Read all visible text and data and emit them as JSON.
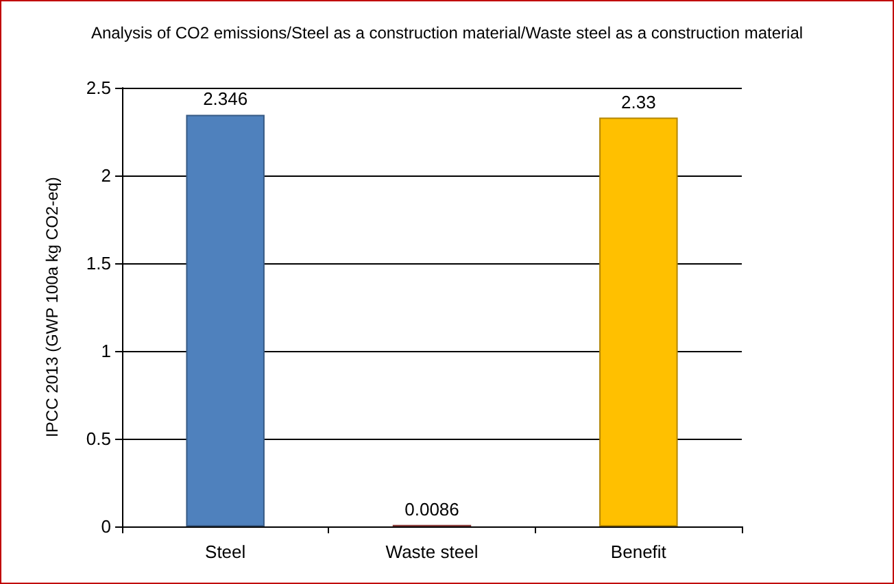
{
  "chart_data": {
    "type": "bar",
    "title": "Analysis of CO2 emissions/Steel as a construction material/Waste steel as a construction material",
    "ylabel": "IPCC 2013 (GWP 100a kg CO2-eq)",
    "categories": [
      "Steel",
      "Waste steel",
      "Benefit"
    ],
    "values": [
      2.346,
      0.0086,
      2.33
    ],
    "colors": [
      "#4f81bd",
      "#c0504d",
      "#ffc000"
    ],
    "ylim": [
      0,
      2.5
    ],
    "yticks": [
      0,
      0.5,
      1,
      1.5,
      2,
      2.5
    ],
    "grid": "y",
    "data_labels": true
  }
}
